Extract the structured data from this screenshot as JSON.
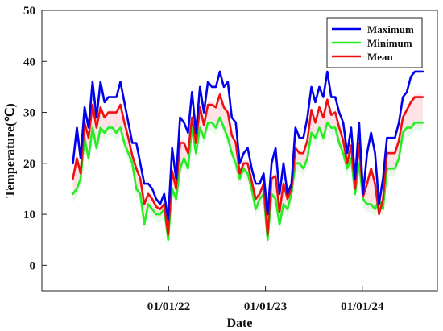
{
  "chart_data": {
    "type": "line",
    "title": "",
    "xlabel": "Date",
    "ylabel": "Temperature(℃)",
    "ylim": [
      -5,
      50
    ],
    "yticks": [
      0,
      10,
      20,
      30,
      40,
      50
    ],
    "xlim": [
      "2020-09-10",
      "2024-10-10"
    ],
    "xticks": [
      {
        "value": "2022-01-01",
        "label": "01/01/22"
      },
      {
        "value": "2023-01-01",
        "label": "01/01/23"
      },
      {
        "value": "2024-01-01",
        "label": "01/01/24"
      }
    ],
    "grid": false,
    "legend_position": "top-right",
    "colors": {
      "Maximum": "#0000ee",
      "Minimum": "#22ee22",
      "Mean": "#ee1111",
      "band": "#ffd6dc",
      "bandGreen": "#d8f5da"
    },
    "x": [
      "2021-01-05",
      "2021-01-20",
      "2021-02-03",
      "2021-02-18",
      "2021-03-05",
      "2021-03-20",
      "2021-04-04",
      "2021-04-19",
      "2021-05-04",
      "2021-05-19",
      "2021-06-03",
      "2021-06-18",
      "2021-07-03",
      "2021-07-18",
      "2021-08-02",
      "2021-08-17",
      "2021-09-01",
      "2021-09-16",
      "2021-10-01",
      "2021-10-16",
      "2021-10-31",
      "2021-11-15",
      "2021-11-30",
      "2021-12-15",
      "2021-12-30",
      "2022-01-14",
      "2022-01-29",
      "2022-02-13",
      "2022-02-28",
      "2022-03-15",
      "2022-03-30",
      "2022-04-14",
      "2022-04-29",
      "2022-05-14",
      "2022-05-29",
      "2022-06-13",
      "2022-06-28",
      "2022-07-13",
      "2022-07-28",
      "2022-08-12",
      "2022-08-27",
      "2022-09-11",
      "2022-09-26",
      "2022-10-11",
      "2022-10-26",
      "2022-11-10",
      "2022-11-25",
      "2022-12-10",
      "2022-12-25",
      "2023-01-09",
      "2023-01-24",
      "2023-02-08",
      "2023-02-23",
      "2023-03-10",
      "2023-03-25",
      "2023-04-09",
      "2023-04-24",
      "2023-05-09",
      "2023-05-24",
      "2023-06-08",
      "2023-06-23",
      "2023-07-08",
      "2023-07-23",
      "2023-08-07",
      "2023-08-22",
      "2023-09-06",
      "2023-09-21",
      "2023-10-06",
      "2023-10-21",
      "2023-11-05",
      "2023-11-20",
      "2023-12-05",
      "2023-12-20",
      "2024-01-04",
      "2024-01-19",
      "2024-02-03",
      "2024-02-18",
      "2024-03-04",
      "2024-03-19",
      "2024-04-03",
      "2024-04-18",
      "2024-05-03",
      "2024-05-18",
      "2024-06-02",
      "2024-06-17",
      "2024-07-02",
      "2024-07-17",
      "2024-08-01",
      "2024-08-16"
    ],
    "series": [
      {
        "name": "Maximum",
        "values": [
          20,
          27,
          21,
          31,
          27,
          36,
          29,
          36,
          32,
          33,
          33,
          33,
          36,
          32,
          28,
          24,
          24,
          20,
          16,
          16,
          15,
          13,
          12,
          14,
          9,
          23,
          17,
          29,
          28,
          26,
          34,
          26,
          35,
          30,
          36,
          35,
          35,
          38,
          35,
          36,
          29,
          28,
          20,
          22,
          23,
          19,
          16,
          16,
          18,
          10,
          20,
          23,
          14,
          20,
          14,
          16,
          27,
          25,
          25,
          29,
          35,
          32,
          35,
          33,
          38,
          33,
          33,
          30,
          28,
          22,
          27,
          17,
          28,
          14,
          22,
          26,
          22,
          12,
          17,
          25,
          25,
          25,
          28,
          33,
          34,
          37,
          38,
          38,
          38
        ],
        "fill": [
          0,
          0,
          0,
          0,
          0,
          0,
          0,
          0,
          0,
          0,
          0,
          0,
          0,
          0,
          0,
          0,
          0,
          0,
          0,
          0,
          0,
          0,
          0,
          0,
          0,
          0,
          0,
          0,
          0,
          0,
          0,
          0,
          0,
          0,
          0,
          0,
          0,
          0,
          0,
          0,
          0,
          0,
          0,
          0,
          0,
          0,
          0,
          0,
          0,
          0,
          0,
          0,
          0,
          0,
          0,
          0,
          0,
          0,
          0,
          0,
          0,
          0,
          0,
          0,
          0,
          0,
          0,
          0,
          0,
          0,
          0,
          0,
          0,
          0,
          0,
          0,
          0,
          0,
          0,
          0,
          0,
          0,
          0,
          0,
          0,
          0,
          0,
          0,
          0
        ]
      },
      {
        "name": "Minimum",
        "values": [
          14,
          15,
          17,
          25,
          21,
          27,
          23,
          27,
          26,
          27,
          27,
          26,
          27,
          24,
          22,
          20,
          15,
          14,
          8,
          12,
          11,
          10,
          10,
          11,
          5,
          15,
          13,
          19,
          21,
          19,
          27,
          22,
          27,
          25,
          28,
          28,
          27,
          29,
          27,
          25,
          22,
          20,
          17,
          19,
          18,
          15,
          11,
          13,
          14,
          5,
          14,
          13,
          8,
          12,
          11,
          14,
          20,
          20,
          19,
          21,
          26,
          25,
          27,
          25,
          28,
          27,
          27,
          24,
          22,
          19,
          21,
          14,
          20,
          13,
          12,
          12,
          11,
          13,
          11,
          19,
          19,
          19,
          21,
          26,
          27,
          27,
          28,
          28,
          28
        ],
        "fill": []
      },
      {
        "name": "Mean",
        "values": [
          17,
          21,
          18,
          28,
          25,
          31.5,
          27,
          31,
          29,
          30,
          30,
          30,
          31.5,
          28,
          25,
          21.5,
          19,
          17,
          12,
          14,
          13,
          11.5,
          11,
          12,
          6,
          18.5,
          15,
          24,
          24,
          22,
          29,
          24,
          31,
          27.5,
          31.5,
          31.5,
          31,
          33.5,
          31,
          30,
          25.5,
          24,
          18,
          20,
          20,
          16.5,
          13,
          14,
          16,
          6,
          17,
          17.5,
          10.5,
          16,
          13,
          15,
          23,
          22,
          22,
          24.5,
          30.5,
          28,
          31,
          29,
          32.5,
          29.5,
          30,
          27,
          24.5,
          20,
          23.5,
          15,
          24,
          13.5,
          16,
          19,
          16,
          10,
          13,
          22,
          22,
          22,
          24.5,
          29,
          30.5,
          32,
          33,
          33,
          33
        ],
        "fill": []
      }
    ]
  }
}
